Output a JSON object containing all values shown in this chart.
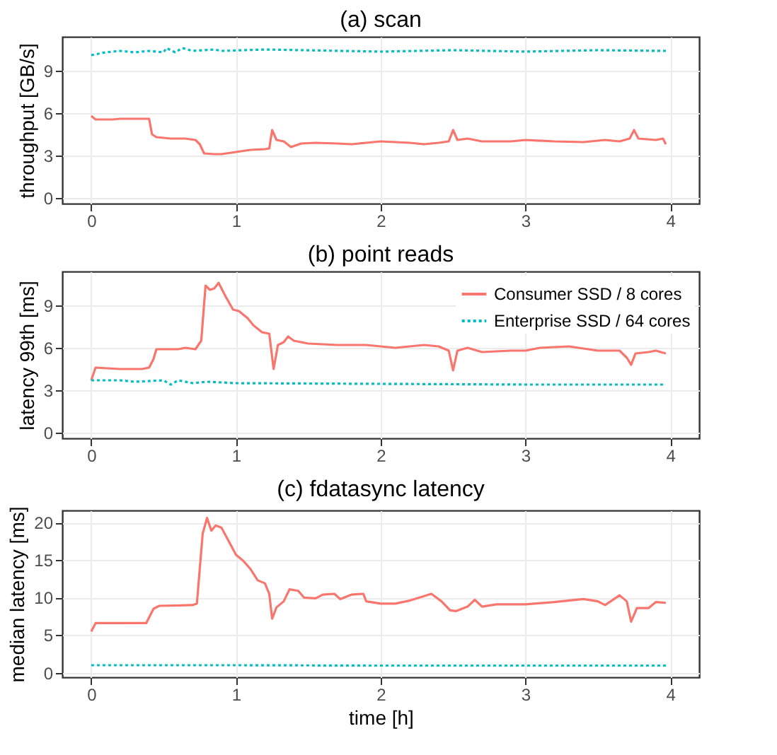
{
  "chart_data": [
    {
      "type": "line",
      "title": "(a) scan",
      "ylabel": "throughput [GB/s]",
      "xlim": [
        -0.2,
        4.2
      ],
      "xticks": [
        0,
        1,
        2,
        3,
        4
      ],
      "ylim": [
        -0.4,
        11.4
      ],
      "yticks": [
        0,
        3,
        6,
        9
      ],
      "grid": true,
      "legend": false,
      "series": [
        {
          "color": "#f8766d",
          "line_style": "solid",
          "x": [
            0,
            0.03,
            0.15,
            0.2,
            0.38,
            0.4,
            0.42,
            0.45,
            0.55,
            0.65,
            0.72,
            0.75,
            0.78,
            0.85,
            0.9,
            1.0,
            1.1,
            1.2,
            1.23,
            1.25,
            1.28,
            1.33,
            1.38,
            1.45,
            1.55,
            1.7,
            1.8,
            1.9,
            2.0,
            2.2,
            2.3,
            2.4,
            2.47,
            2.5,
            2.53,
            2.6,
            2.7,
            2.9,
            3.0,
            3.2,
            3.4,
            3.55,
            3.65,
            3.72,
            3.75,
            3.78,
            3.9,
            3.95,
            3.97
          ],
          "values": [
            5.8,
            5.55,
            5.55,
            5.6,
            5.6,
            5.6,
            4.5,
            4.3,
            4.2,
            4.2,
            4.1,
            3.8,
            3.15,
            3.1,
            3.1,
            3.25,
            3.4,
            3.45,
            3.5,
            4.8,
            4.1,
            4.0,
            3.6,
            3.85,
            3.9,
            3.85,
            3.8,
            3.9,
            4.0,
            3.9,
            3.8,
            3.9,
            4.0,
            4.8,
            4.1,
            4.2,
            4.0,
            4.0,
            4.1,
            4.0,
            3.95,
            4.1,
            4.0,
            4.2,
            4.8,
            4.2,
            4.1,
            4.2,
            3.8
          ]
        },
        {
          "color": "#00bfc4",
          "line_style": "dotted",
          "x": [
            0,
            0.1,
            0.2,
            0.3,
            0.4,
            0.5,
            0.52,
            0.58,
            0.63,
            0.7,
            0.85,
            0.9,
            1.2,
            2.0,
            2.5,
            3.0,
            3.5,
            3.97
          ],
          "values": [
            10.1,
            10.3,
            10.4,
            10.3,
            10.4,
            10.3,
            10.6,
            10.3,
            10.6,
            10.4,
            10.5,
            10.4,
            10.5,
            10.35,
            10.45,
            10.35,
            10.45,
            10.4
          ]
        }
      ]
    },
    {
      "type": "line",
      "title": "(b) point reads",
      "ylabel": "latency 99th [ms]",
      "xlim": [
        -0.2,
        4.2
      ],
      "xticks": [
        0,
        1,
        2,
        3,
        4
      ],
      "ylim": [
        -0.4,
        11.4
      ],
      "yticks": [
        0,
        3,
        6,
        9
      ],
      "grid": true,
      "legend": "top right",
      "series": [
        {
          "name": "Consumer SSD / 8 cores",
          "color": "#f8766d",
          "line_style": "solid",
          "x": [
            0,
            0.03,
            0.2,
            0.35,
            0.4,
            0.43,
            0.45,
            0.6,
            0.65,
            0.72,
            0.76,
            0.79,
            0.82,
            0.85,
            0.88,
            0.93,
            0.98,
            1.02,
            1.08,
            1.12,
            1.18,
            1.23,
            1.26,
            1.29,
            1.33,
            1.36,
            1.4,
            1.5,
            1.7,
            1.9,
            2.1,
            2.3,
            2.4,
            2.47,
            2.5,
            2.53,
            2.6,
            2.7,
            2.9,
            3.0,
            3.1,
            3.3,
            3.5,
            3.65,
            3.7,
            3.73,
            3.76,
            3.85,
            3.9,
            3.97
          ],
          "values": [
            3.7,
            4.6,
            4.5,
            4.5,
            4.6,
            5.2,
            5.9,
            5.9,
            6.0,
            5.9,
            6.5,
            10.4,
            10.1,
            10.2,
            10.6,
            9.6,
            8.7,
            8.6,
            8.1,
            7.6,
            7.1,
            7.0,
            4.5,
            6.2,
            6.4,
            6.8,
            6.5,
            6.3,
            6.2,
            6.2,
            6.0,
            6.2,
            6.1,
            5.8,
            4.4,
            5.8,
            6.0,
            5.7,
            5.8,
            5.8,
            6.0,
            6.1,
            5.8,
            5.8,
            5.3,
            4.8,
            5.6,
            5.7,
            5.8,
            5.6
          ]
        },
        {
          "name": "Enterprise SSD / 64 cores",
          "color": "#00bfc4",
          "line_style": "dotted",
          "x": [
            0,
            0.2,
            0.3,
            0.5,
            0.55,
            0.6,
            0.7,
            0.8,
            1.0,
            2.0,
            3.0,
            3.97
          ],
          "values": [
            3.7,
            3.7,
            3.6,
            3.7,
            3.4,
            3.7,
            3.5,
            3.6,
            3.5,
            3.45,
            3.4,
            3.4
          ]
        }
      ]
    },
    {
      "type": "line",
      "title": "(c) fdatasync latency",
      "xlabel": "time [h]",
      "ylabel": "median latency [ms]",
      "xlim": [
        -0.2,
        4.2
      ],
      "xticks": [
        0,
        1,
        2,
        3,
        4
      ],
      "ylim": [
        -0.6,
        21.6
      ],
      "yticks": [
        0,
        5,
        10,
        15,
        20
      ],
      "grid": true,
      "legend": false,
      "series": [
        {
          "color": "#f8766d",
          "line_style": "solid",
          "x": [
            0,
            0.03,
            0.2,
            0.35,
            0.38,
            0.43,
            0.47,
            0.7,
            0.73,
            0.77,
            0.8,
            0.83,
            0.86,
            0.9,
            0.95,
            1.0,
            1.05,
            1.1,
            1.15,
            1.2,
            1.23,
            1.25,
            1.28,
            1.33,
            1.37,
            1.43,
            1.47,
            1.55,
            1.6,
            1.68,
            1.72,
            1.8,
            1.88,
            1.9,
            2.0,
            2.1,
            2.2,
            2.3,
            2.35,
            2.42,
            2.48,
            2.52,
            2.6,
            2.65,
            2.7,
            2.8,
            2.9,
            3.0,
            3.2,
            3.4,
            3.5,
            3.55,
            3.65,
            3.7,
            3.73,
            3.77,
            3.85,
            3.9,
            3.97
          ],
          "values": [
            5.5,
            6.6,
            6.6,
            6.6,
            6.6,
            8.5,
            8.9,
            9.0,
            9.2,
            18.5,
            20.6,
            18.9,
            19.6,
            19.3,
            17.5,
            15.7,
            14.9,
            13.8,
            12.3,
            11.9,
            10.5,
            7.2,
            8.7,
            9.5,
            11.1,
            10.9,
            10.0,
            9.9,
            10.4,
            10.5,
            9.8,
            10.4,
            10.5,
            9.5,
            9.2,
            9.2,
            9.6,
            10.2,
            10.5,
            9.5,
            8.3,
            8.2,
            8.8,
            9.7,
            8.8,
            9.1,
            9.1,
            9.1,
            9.4,
            9.8,
            9.5,
            9.0,
            10.3,
            9.5,
            6.8,
            8.6,
            8.6,
            9.4,
            9.3
          ]
        },
        {
          "color": "#00bfc4",
          "line_style": "dotted",
          "x": [
            0,
            1.0,
            2.0,
            3.0,
            3.97
          ],
          "values": [
            1.0,
            1.0,
            0.95,
            0.95,
            0.95
          ]
        }
      ]
    }
  ]
}
